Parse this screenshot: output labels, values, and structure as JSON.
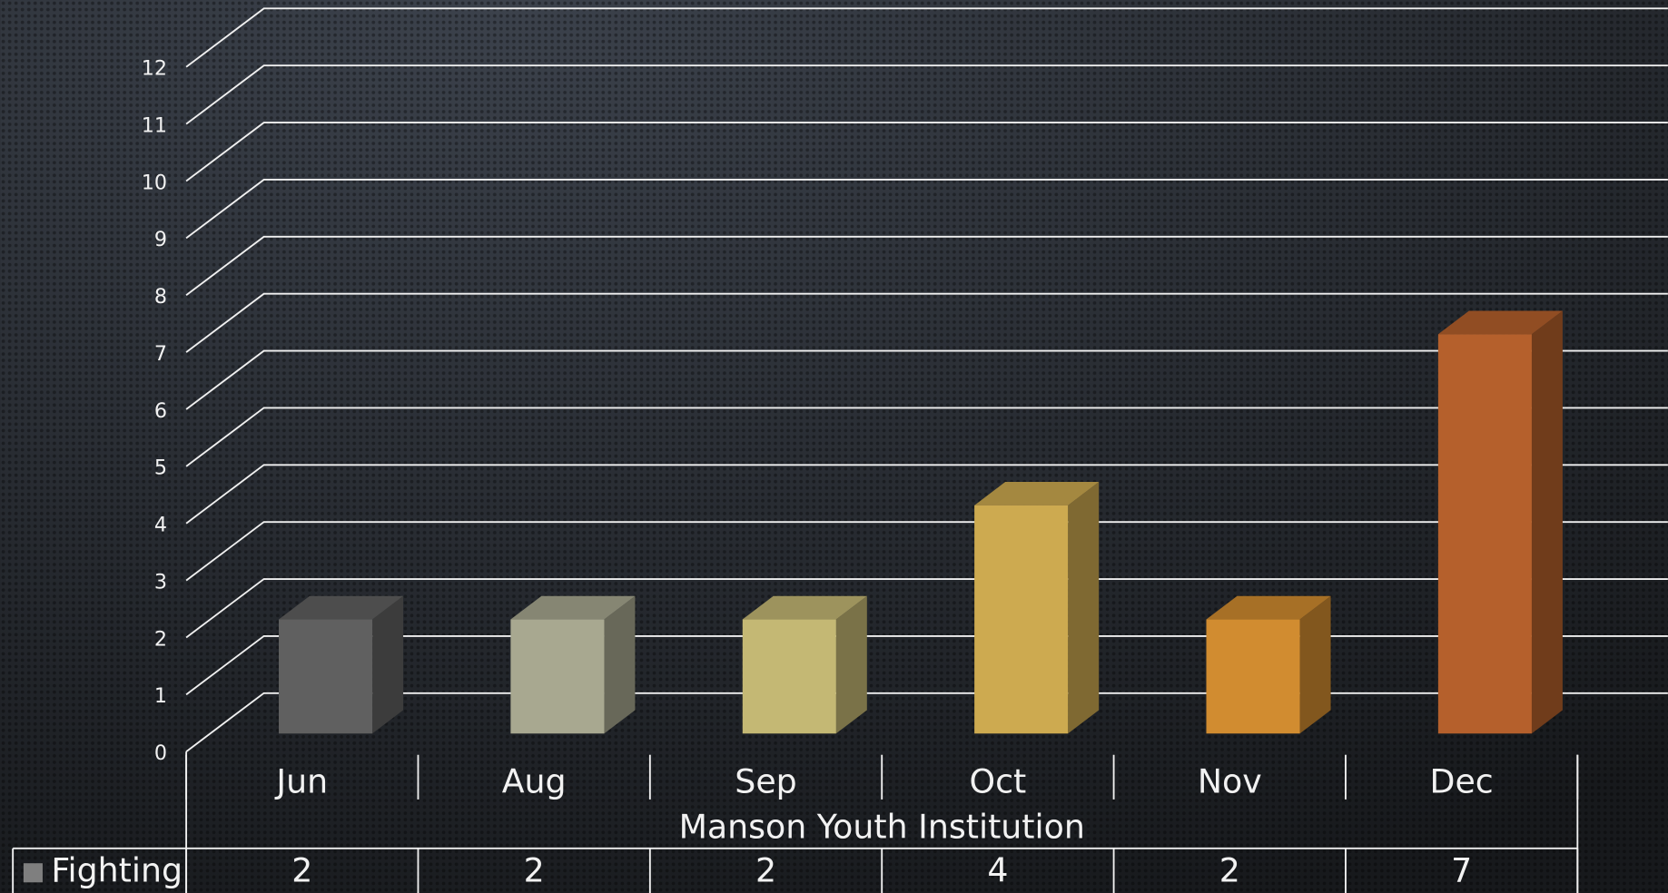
{
  "chart_data": {
    "type": "bar3d",
    "categories": [
      "Jun",
      "Aug",
      "Sep",
      "Oct",
      "Nov",
      "Dec"
    ],
    "group_label": "Manson Youth Institution",
    "series": [
      {
        "name": "Fighting",
        "color": "#7f7f7f",
        "values": [
          2,
          2,
          2,
          4,
          2,
          7
        ]
      }
    ],
    "colors": [
      "#606060",
      "#a8a890",
      "#c4b874",
      "#cdaa50",
      "#d18c30",
      "#b5602c"
    ],
    "ylim": [
      0,
      12
    ],
    "yticks": [
      0,
      1,
      2,
      3,
      4,
      5,
      6,
      7,
      8,
      9,
      10,
      11,
      12
    ],
    "grid": true,
    "data_table": true
  }
}
